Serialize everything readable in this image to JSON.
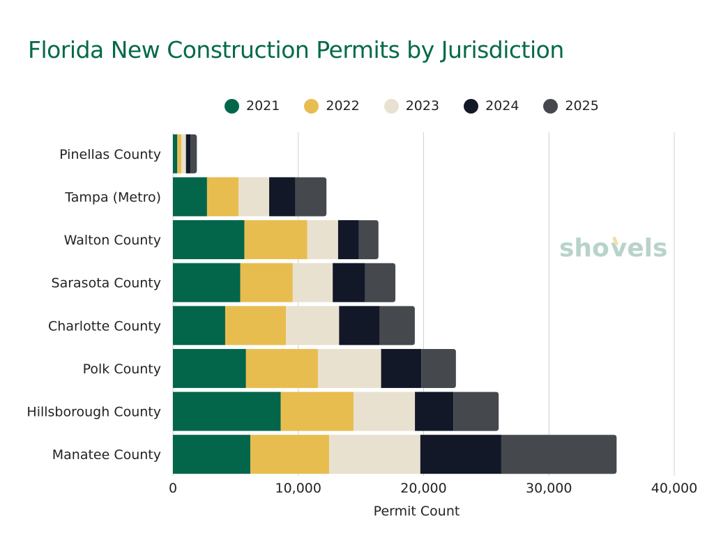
{
  "chart_data": {
    "type": "bar",
    "orientation": "horizontal",
    "stacked": true,
    "title": "Florida New Construction Permits by Jurisdiction",
    "xlabel": "Permit Count",
    "ylabel": "",
    "xlim": [
      0,
      40000
    ],
    "xticks": [
      0,
      10000,
      20000,
      30000,
      40000
    ],
    "xtick_labels": [
      "0",
      "10,000",
      "20,000",
      "30,000",
      "40,000"
    ],
    "grid": true,
    "legend_position": "top",
    "categories": [
      "Pinellas County",
      "Tampa (Metro)",
      "Walton County",
      "Sarasota County",
      "Charlotte County",
      "Polk County",
      "Hillsborough County",
      "Manatee County"
    ],
    "series": [
      {
        "name": "2021",
        "color": "#03664b",
        "values": [
          350,
          2720,
          5700,
          5370,
          4170,
          5830,
          8600,
          6180
        ]
      },
      {
        "name": "2022",
        "color": "#e8bd50",
        "values": [
          320,
          2520,
          5020,
          4190,
          4850,
          5740,
          5810,
          6280
        ]
      },
      {
        "name": "2023",
        "color": "#e9e1d0",
        "values": [
          370,
          2440,
          2460,
          3190,
          4240,
          5040,
          4900,
          7280
        ]
      },
      {
        "name": "2024",
        "color": "#121827",
        "values": [
          370,
          2090,
          1650,
          2590,
          3230,
          3210,
          3070,
          6460
        ]
      },
      {
        "name": "2025",
        "color": "#45494d",
        "values": [
          500,
          2480,
          1570,
          2410,
          2810,
          2760,
          3610,
          9200
        ]
      }
    ]
  },
  "logo_text": "shovels"
}
